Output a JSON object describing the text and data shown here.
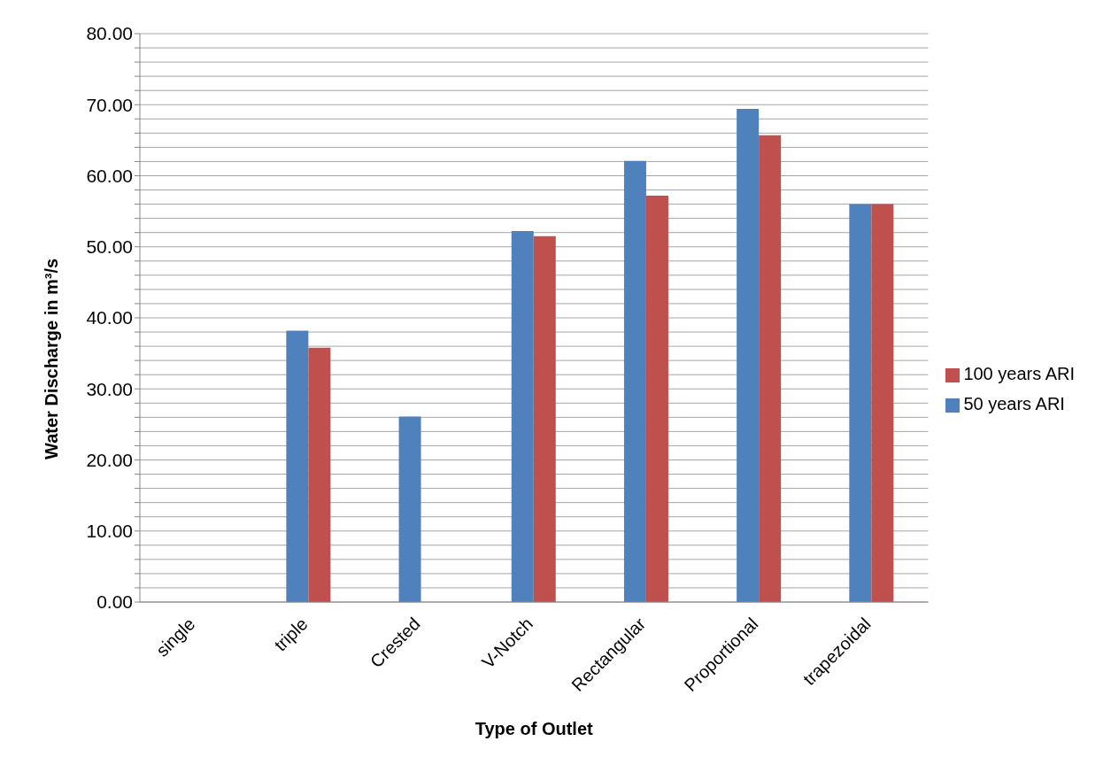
{
  "chart_data": {
    "type": "bar",
    "xlabel": "Type of Outlet",
    "ylabel": "Water Discharge in m³/s",
    "categories": [
      "single",
      "triple",
      "Crested",
      "V-Notch",
      "Rectangular",
      "Proportional",
      "trapezoidal"
    ],
    "series": [
      {
        "name": "50 years ARI",
        "color": "#4f81bd",
        "values": [
          0,
          38.2,
          26.1,
          52.2,
          62.1,
          69.4,
          56.0
        ]
      },
      {
        "name": "100 years ARI",
        "color": "#c0504d",
        "values": [
          0,
          35.8,
          0,
          51.5,
          57.2,
          65.7,
          56.0
        ]
      }
    ],
    "ylim": [
      0,
      80
    ],
    "yticks": [
      {
        "value": 0,
        "label": "0.00"
      },
      {
        "value": 2,
        "label": null
      },
      {
        "value": 4,
        "label": null
      },
      {
        "value": 6,
        "label": null
      },
      {
        "value": 8,
        "label": null
      },
      {
        "value": 10,
        "label": "10.00"
      },
      {
        "value": 12,
        "label": null
      },
      {
        "value": 14,
        "label": null
      },
      {
        "value": 16,
        "label": null
      },
      {
        "value": 18,
        "label": null
      },
      {
        "value": 20,
        "label": "20.00"
      },
      {
        "value": 22,
        "label": null
      },
      {
        "value": 24,
        "label": null
      },
      {
        "value": 26,
        "label": null
      },
      {
        "value": 28,
        "label": null
      },
      {
        "value": 30,
        "label": "30.00"
      },
      {
        "value": 32,
        "label": null
      },
      {
        "value": 34,
        "label": null
      },
      {
        "value": 36,
        "label": null
      },
      {
        "value": 38,
        "label": null
      },
      {
        "value": 40,
        "label": "40.00"
      },
      {
        "value": 42,
        "label": null
      },
      {
        "value": 44,
        "label": null
      },
      {
        "value": 46,
        "label": null
      },
      {
        "value": 48,
        "label": null
      },
      {
        "value": 50,
        "label": "50.00"
      },
      {
        "value": 52,
        "label": null
      },
      {
        "value": 54,
        "label": null
      },
      {
        "value": 56,
        "label": null
      },
      {
        "value": 58,
        "label": null
      },
      {
        "value": 60,
        "label": "60.00"
      },
      {
        "value": 62,
        "label": null
      },
      {
        "value": 64,
        "label": null
      },
      {
        "value": 66,
        "label": null
      },
      {
        "value": 68,
        "label": null
      },
      {
        "value": 70,
        "label": "70.00"
      },
      {
        "value": 72,
        "label": null
      },
      {
        "value": 74,
        "label": null
      },
      {
        "value": 76,
        "label": null
      },
      {
        "value": 78,
        "label": null
      },
      {
        "value": 80,
        "label": "80.00"
      }
    ],
    "grid": "y",
    "legend": "right"
  }
}
